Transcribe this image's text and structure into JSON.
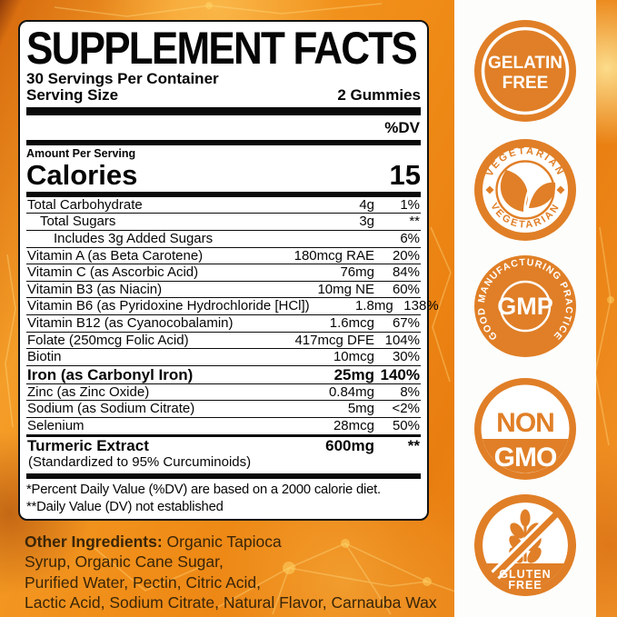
{
  "colors": {
    "badge_orange": "#e07f27",
    "panel_border": "#141414",
    "ingredients_text": "#3a2507"
  },
  "panel": {
    "title": "SUPPLEMENT FACTS",
    "servings_per_container": "30 Servings Per Container",
    "serving_size_label": "Serving Size",
    "serving_size_value": "2 Gummies",
    "dv_header": "%DV",
    "amount_per_serving_label": "Amount Per Serving",
    "calories_label": "Calories",
    "calories_value": "15",
    "rows": [
      {
        "name": "Total Carbohydrate",
        "amount": "4g",
        "dv": "1%",
        "indent": 0
      },
      {
        "name": "Total Sugars",
        "amount": "3g",
        "dv": "**",
        "indent": 1
      },
      {
        "name": "Includes 3g Added Sugars",
        "amount": "",
        "dv": "6%",
        "indent": 2
      },
      {
        "name": "Vitamin A (as Beta Carotene)",
        "amount": "180mcg RAE",
        "dv": "20%"
      },
      {
        "name": "Vitamin C (as Ascorbic Acid)",
        "amount": "76mg",
        "dv": "84%"
      },
      {
        "name": "Vitamin B3 (as Niacin)",
        "amount": "10mg NE",
        "dv": "60%"
      },
      {
        "name": "Vitamin B6 (as Pyridoxine Hydrochloride [HCl])",
        "amount": "1.8mg",
        "dv": "138%"
      },
      {
        "name": "Vitamin B12 (as Cyanocobalamin)",
        "amount": "1.6mcg",
        "dv": "67%"
      },
      {
        "name": "Folate (250mcg Folic Acid)",
        "amount": "417mcg DFE",
        "dv": "104%"
      },
      {
        "name": "Biotin",
        "amount": "10mcg",
        "dv": "30%"
      },
      {
        "name": "Iron (as Carbonyl Iron)",
        "amount": "25mg",
        "dv": "140%",
        "bold": true
      },
      {
        "name": "Zinc (as Zinc Oxide)",
        "amount": "0.84mg",
        "dv": "8%"
      },
      {
        "name": "Sodium (as Sodium Citrate)",
        "amount": "5mg",
        "dv": "<2%"
      },
      {
        "name": "Selenium",
        "amount": "28mcg",
        "dv": "50%"
      },
      {
        "name": "Turmeric Extract",
        "amount": "600mg",
        "dv": "**",
        "bold": true,
        "sep": "thick",
        "sub": "(Standardized to 95% Curcuminoids)"
      }
    ],
    "footnotes": [
      "*Percent Daily Value (%DV) are based on a 2000 calorie diet.",
      "**Daily Value (DV) not established"
    ]
  },
  "ingredients": {
    "label": "Other Ingredients:",
    "line1_rest": " Organic Tapioca",
    "line2": "Syrup, Organic Cane Sugar,",
    "line3": "Purified Water, Pectin, Citric Acid,",
    "line4": "Lactic Acid, Sodium Citrate, Natural Flavor, Carnauba Wax"
  },
  "badges": {
    "gelatin": {
      "line1": "GELATIN",
      "line2": "FREE"
    },
    "vegetarian": {
      "top": "VEGETARIAN",
      "bottom": "VEGETARIAN"
    },
    "gmp": {
      "ring": "GOOD MANUFACTURING PRACTICE",
      "center": "GMP"
    },
    "nongmo": {
      "line1": "NON",
      "line2": "GMO"
    },
    "gluten": {
      "line1": "GLUTEN",
      "line2": "FREE"
    }
  }
}
